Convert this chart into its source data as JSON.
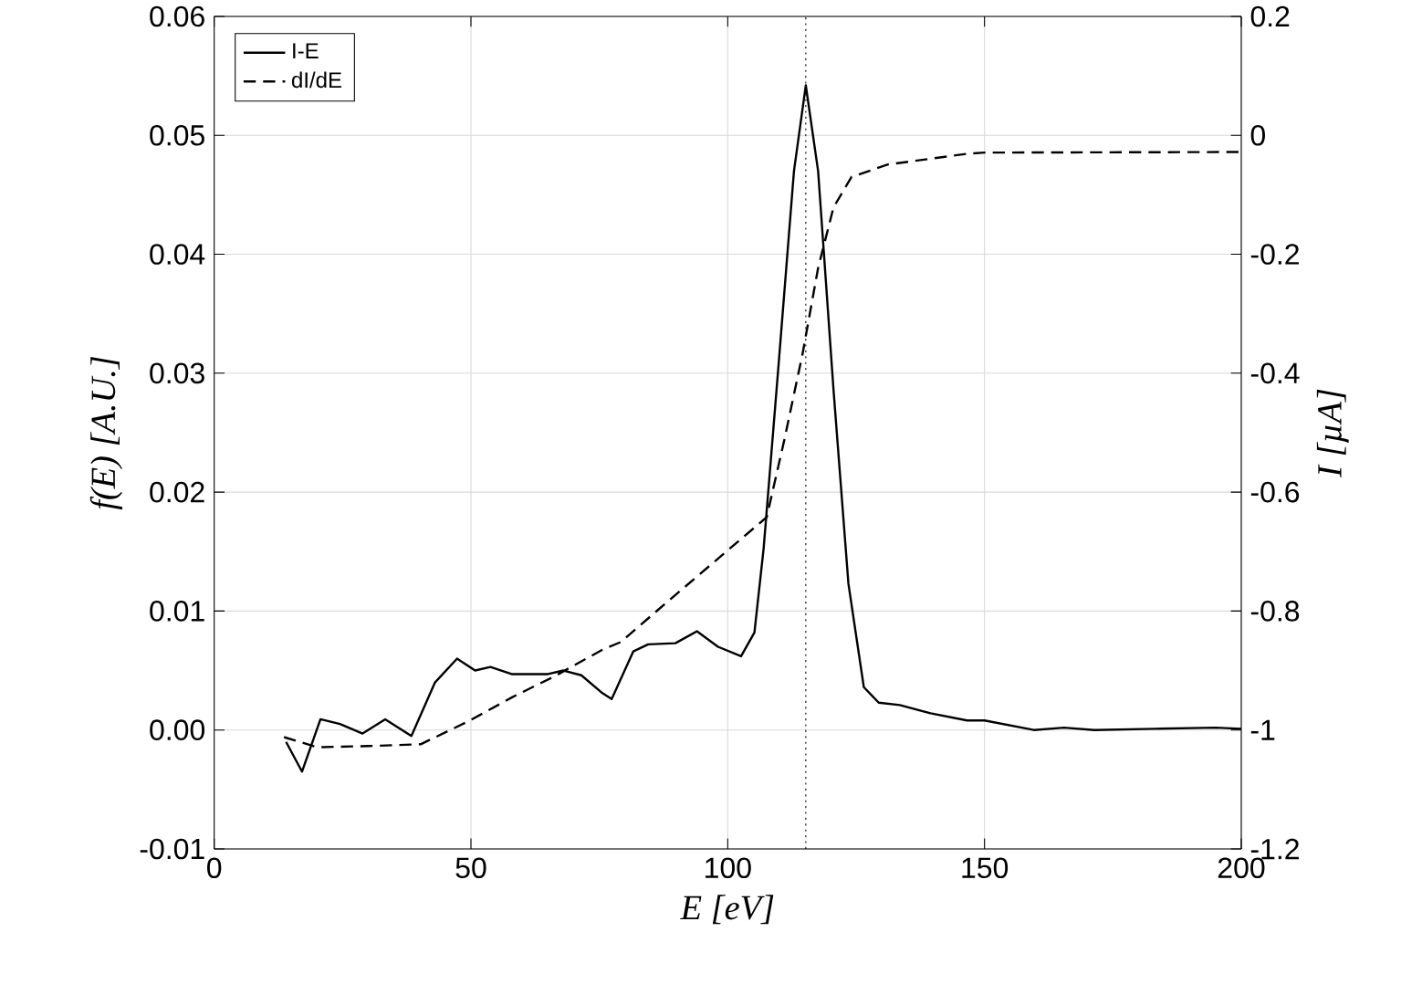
{
  "chart_data": {
    "type": "line",
    "xlabel": "E [eV]",
    "ylabel": "f(E) [A.U.]",
    "y2label": "I [µA]",
    "xlim": [
      0,
      200
    ],
    "xticks": [
      0,
      50,
      100,
      150,
      200
    ],
    "ylim": [
      -0.01,
      0.06
    ],
    "yticks": [
      -0.01,
      {
        "value": 0,
        "label": "0.00"
      },
      0.01,
      0.02,
      0.03,
      0.04,
      0.05,
      0.06
    ],
    "y2lim": [
      -1.2,
      0.2
    ],
    "y2ticks": [
      -1.2,
      -1,
      -0.8,
      -0.6,
      -0.4,
      -0.2,
      0,
      0.2
    ],
    "grid": true,
    "legend": "top left",
    "ref_lines": [
      {
        "axis": "x",
        "value": 115.2,
        "color": "#000000",
        "line_style": "dotted"
      }
    ],
    "series": [
      {
        "name": "I-E",
        "color": "#000000",
        "line_style": "solid",
        "axis": "y",
        "x": [
          14,
          17.1,
          20.7,
          24.5,
          28.9,
          33.3,
          38.4,
          43,
          47.3,
          50.8,
          53.8,
          57.9,
          65,
          68,
          71.5,
          75.6,
          77.4,
          81.6,
          84.5,
          89.8,
          94,
          98.1,
          102.6,
          105.2,
          107,
          109.9,
          112.9,
          115.2,
          117.6,
          120.6,
          123.5,
          126.5,
          129.4,
          133.5,
          139.5,
          146.6,
          150,
          159.6,
          165.5,
          171.4,
          183.2,
          195,
          200
        ],
        "values": [
          -0.001,
          -0.0035,
          0.0009,
          0.0005,
          -0.0003,
          0.0009,
          -0.0005,
          0.004,
          0.006,
          0.005,
          0.0053,
          0.0047,
          0.0047,
          0.005,
          0.0046,
          0.0031,
          0.0026,
          0.0066,
          0.0072,
          0.0073,
          0.0083,
          0.007,
          0.0062,
          0.0082,
          0.0153,
          0.0307,
          0.047,
          0.0542,
          0.047,
          0.0286,
          0.0123,
          0.0036,
          0.0023,
          0.0021,
          0.0014,
          0.0008,
          0.0008,
          0,
          0.0002,
          0,
          0.0001,
          0.0002,
          0.0001
        ]
      },
      {
        "name": "dI/dE",
        "color": "#000000",
        "line_style": "dashed",
        "axis": "y2",
        "x": [
          13.6,
          20.1,
          30,
          40.2,
          49.6,
          58,
          66.2,
          75.6,
          79.2,
          87.5,
          99.3,
          107.6,
          111.1,
          114.6,
          117.6,
          120.6,
          124.1,
          131.2,
          146.6,
          150,
          200
        ],
        "values": [
          -1.012,
          -1.029,
          -1.027,
          -1.024,
          -0.985,
          -0.945,
          -0.91,
          -0.865,
          -0.852,
          -0.79,
          -0.703,
          -0.642,
          -0.509,
          -0.366,
          -0.223,
          -0.121,
          -0.07,
          -0.049,
          -0.031,
          -0.029,
          -0.028
        ]
      }
    ]
  }
}
